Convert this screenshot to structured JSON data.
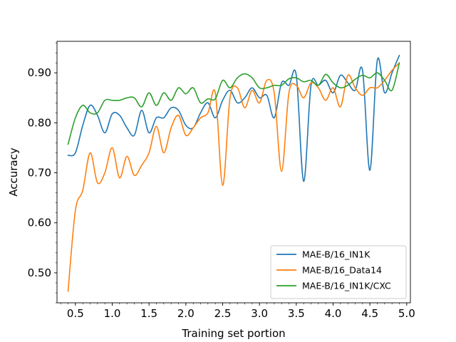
{
  "chart_data": {
    "type": "line",
    "title": "",
    "xlabel": "Training set portion",
    "ylabel": "Accuracy",
    "xlim": [
      0.25,
      5.05
    ],
    "ylim": [
      0.44,
      0.963
    ],
    "x_ticks": [
      0.5,
      1.0,
      1.5,
      2.0,
      2.5,
      3.0,
      3.5,
      4.0,
      4.5,
      5.0
    ],
    "x_tick_labels": [
      "0.5",
      "1.0",
      "1.5",
      "2.0",
      "2.5",
      "3.0",
      "3.5",
      "4.0",
      "4.5",
      "5.0"
    ],
    "x_minor_step": 0.1,
    "y_ticks": [
      0.5,
      0.6,
      0.7,
      0.8,
      0.9
    ],
    "y_tick_labels": [
      "0.50",
      "0.60",
      "0.70",
      "0.80",
      "0.90"
    ],
    "y_minor_step": 0.02,
    "grid": false,
    "legend_position": "lower-right",
    "series": [
      {
        "name": "MAE-B/16_IN1K",
        "color": "#1f77b4",
        "points": [
          [
            0.4,
            0.735
          ],
          [
            0.5,
            0.74
          ],
          [
            0.6,
            0.795
          ],
          [
            0.7,
            0.835
          ],
          [
            0.8,
            0.815
          ],
          [
            0.9,
            0.78
          ],
          [
            1.0,
            0.818
          ],
          [
            1.1,
            0.815
          ],
          [
            1.2,
            0.79
          ],
          [
            1.3,
            0.775
          ],
          [
            1.4,
            0.825
          ],
          [
            1.5,
            0.78
          ],
          [
            1.6,
            0.81
          ],
          [
            1.7,
            0.81
          ],
          [
            1.8,
            0.83
          ],
          [
            1.9,
            0.825
          ],
          [
            2.0,
            0.795
          ],
          [
            2.1,
            0.79
          ],
          [
            2.2,
            0.82
          ],
          [
            2.3,
            0.84
          ],
          [
            2.4,
            0.81
          ],
          [
            2.5,
            0.845
          ],
          [
            2.6,
            0.865
          ],
          [
            2.7,
            0.84
          ],
          [
            2.8,
            0.85
          ],
          [
            2.9,
            0.87
          ],
          [
            3.0,
            0.85
          ],
          [
            3.1,
            0.855
          ],
          [
            3.2,
            0.81
          ],
          [
            3.3,
            0.88
          ],
          [
            3.4,
            0.875
          ],
          [
            3.5,
            0.895
          ],
          [
            3.6,
            0.683
          ],
          [
            3.7,
            0.875
          ],
          [
            3.8,
            0.875
          ],
          [
            3.9,
            0.885
          ],
          [
            4.0,
            0.86
          ],
          [
            4.1,
            0.895
          ],
          [
            4.2,
            0.88
          ],
          [
            4.3,
            0.865
          ],
          [
            4.4,
            0.905
          ],
          [
            4.5,
            0.705
          ],
          [
            4.6,
            0.925
          ],
          [
            4.7,
            0.86
          ],
          [
            4.8,
            0.9
          ],
          [
            4.9,
            0.935
          ]
        ]
      },
      {
        "name": "MAE-B/16_Data14",
        "color": "#ff7f0e",
        "points": [
          [
            0.4,
            0.463
          ],
          [
            0.5,
            0.625
          ],
          [
            0.6,
            0.665
          ],
          [
            0.7,
            0.74
          ],
          [
            0.8,
            0.68
          ],
          [
            0.9,
            0.7
          ],
          [
            1.0,
            0.75
          ],
          [
            1.1,
            0.69
          ],
          [
            1.2,
            0.733
          ],
          [
            1.3,
            0.695
          ],
          [
            1.4,
            0.715
          ],
          [
            1.5,
            0.74
          ],
          [
            1.6,
            0.793
          ],
          [
            1.7,
            0.74
          ],
          [
            1.8,
            0.79
          ],
          [
            1.9,
            0.815
          ],
          [
            2.0,
            0.775
          ],
          [
            2.1,
            0.79
          ],
          [
            2.2,
            0.81
          ],
          [
            2.3,
            0.82
          ],
          [
            2.4,
            0.86
          ],
          [
            2.5,
            0.675
          ],
          [
            2.6,
            0.85
          ],
          [
            2.7,
            0.87
          ],
          [
            2.8,
            0.83
          ],
          [
            2.9,
            0.865
          ],
          [
            3.0,
            0.84
          ],
          [
            3.1,
            0.885
          ],
          [
            3.2,
            0.86
          ],
          [
            3.3,
            0.703
          ],
          [
            3.4,
            0.86
          ],
          [
            3.5,
            0.875
          ],
          [
            3.6,
            0.85
          ],
          [
            3.7,
            0.88
          ],
          [
            3.8,
            0.87
          ],
          [
            3.9,
            0.845
          ],
          [
            4.0,
            0.87
          ],
          [
            4.1,
            0.832
          ],
          [
            4.2,
            0.895
          ],
          [
            4.3,
            0.87
          ],
          [
            4.4,
            0.855
          ],
          [
            4.5,
            0.87
          ],
          [
            4.6,
            0.87
          ],
          [
            4.7,
            0.885
          ],
          [
            4.8,
            0.905
          ],
          [
            4.9,
            0.92
          ]
        ]
      },
      {
        "name": "MAE-B/16_IN1K/CXC",
        "color": "#2ca02c",
        "points": [
          [
            0.4,
            0.757
          ],
          [
            0.5,
            0.81
          ],
          [
            0.6,
            0.835
          ],
          [
            0.7,
            0.82
          ],
          [
            0.8,
            0.82
          ],
          [
            0.9,
            0.845
          ],
          [
            1.0,
            0.845
          ],
          [
            1.1,
            0.845
          ],
          [
            1.2,
            0.85
          ],
          [
            1.3,
            0.85
          ],
          [
            1.4,
            0.832
          ],
          [
            1.5,
            0.86
          ],
          [
            1.6,
            0.835
          ],
          [
            1.7,
            0.86
          ],
          [
            1.8,
            0.845
          ],
          [
            1.9,
            0.87
          ],
          [
            2.0,
            0.858
          ],
          [
            2.1,
            0.87
          ],
          [
            2.2,
            0.84
          ],
          [
            2.3,
            0.848
          ],
          [
            2.4,
            0.848
          ],
          [
            2.5,
            0.885
          ],
          [
            2.6,
            0.87
          ],
          [
            2.7,
            0.89
          ],
          [
            2.8,
            0.898
          ],
          [
            2.9,
            0.89
          ],
          [
            3.0,
            0.87
          ],
          [
            3.1,
            0.87
          ],
          [
            3.2,
            0.875
          ],
          [
            3.3,
            0.875
          ],
          [
            3.4,
            0.888
          ],
          [
            3.5,
            0.89
          ],
          [
            3.6,
            0.882
          ],
          [
            3.7,
            0.885
          ],
          [
            3.8,
            0.875
          ],
          [
            3.9,
            0.897
          ],
          [
            4.0,
            0.88
          ],
          [
            4.1,
            0.87
          ],
          [
            4.2,
            0.875
          ],
          [
            4.3,
            0.887
          ],
          [
            4.4,
            0.895
          ],
          [
            4.5,
            0.89
          ],
          [
            4.6,
            0.9
          ],
          [
            4.7,
            0.885
          ],
          [
            4.8,
            0.865
          ],
          [
            4.9,
            0.92
          ]
        ]
      }
    ]
  }
}
